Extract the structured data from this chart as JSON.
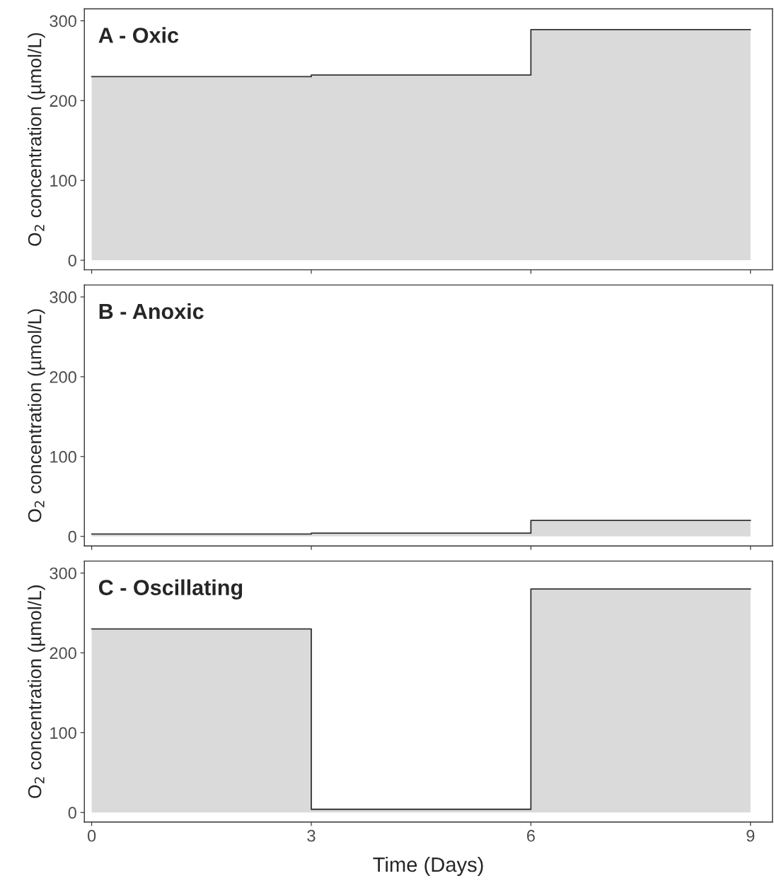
{
  "chart_data": [
    {
      "type": "area",
      "title": "A - Oxic",
      "ylabel": "O$_{2}$ concentration (µmol/L)",
      "x": [
        0,
        3,
        3,
        6,
        6,
        9
      ],
      "series": [
        {
          "color": "#333333",
          "values": [
            230,
            230,
            232,
            232,
            289,
            289
          ]
        }
      ],
      "xlim": [
        -0.1,
        9.3
      ],
      "xticks": [
        {
          "value": 0,
          "label": null
        },
        {
          "value": 3,
          "label": null
        },
        {
          "value": 6,
          "label": null
        },
        {
          "value": 9,
          "label": null
        }
      ],
      "ylim": [
        -12,
        315
      ],
      "yticks": [
        0,
        100,
        200,
        300
      ],
      "tick_labels": "y",
      "grid": false
    },
    {
      "type": "area",
      "title": "B - Anoxic",
      "ylabel": "O$_{2}$ concentration (µmol/L)",
      "x": [
        0,
        3,
        3,
        6,
        6,
        9
      ],
      "series": [
        {
          "color": "#333333",
          "values": [
            3,
            3,
            4,
            4,
            20,
            20
          ]
        }
      ],
      "xlim": [
        -0.1,
        9.3
      ],
      "xticks": [
        {
          "value": 0,
          "label": null
        },
        {
          "value": 3,
          "label": null
        },
        {
          "value": 6,
          "label": null
        },
        {
          "value": 9,
          "label": null
        }
      ],
      "ylim": [
        -12,
        315
      ],
      "yticks": [
        0,
        100,
        200,
        300
      ],
      "tick_labels": "y",
      "grid": false
    },
    {
      "type": "area",
      "title": "C - Oscillating",
      "ylabel": "O$_{2}$ concentration (µmol/L)",
      "xlabel": "Time (Days)",
      "x": [
        0,
        3,
        3,
        6,
        6,
        9
      ],
      "series": [
        {
          "color": "#333333",
          "values": [
            230,
            230,
            4,
            4,
            280,
            280
          ]
        }
      ],
      "xlim": [
        -0.1,
        9.3
      ],
      "xticks": [
        0,
        3,
        6,
        9
      ],
      "ylim": [
        -12,
        315
      ],
      "yticks": [
        0,
        100,
        200,
        300
      ],
      "grid": false
    }
  ]
}
